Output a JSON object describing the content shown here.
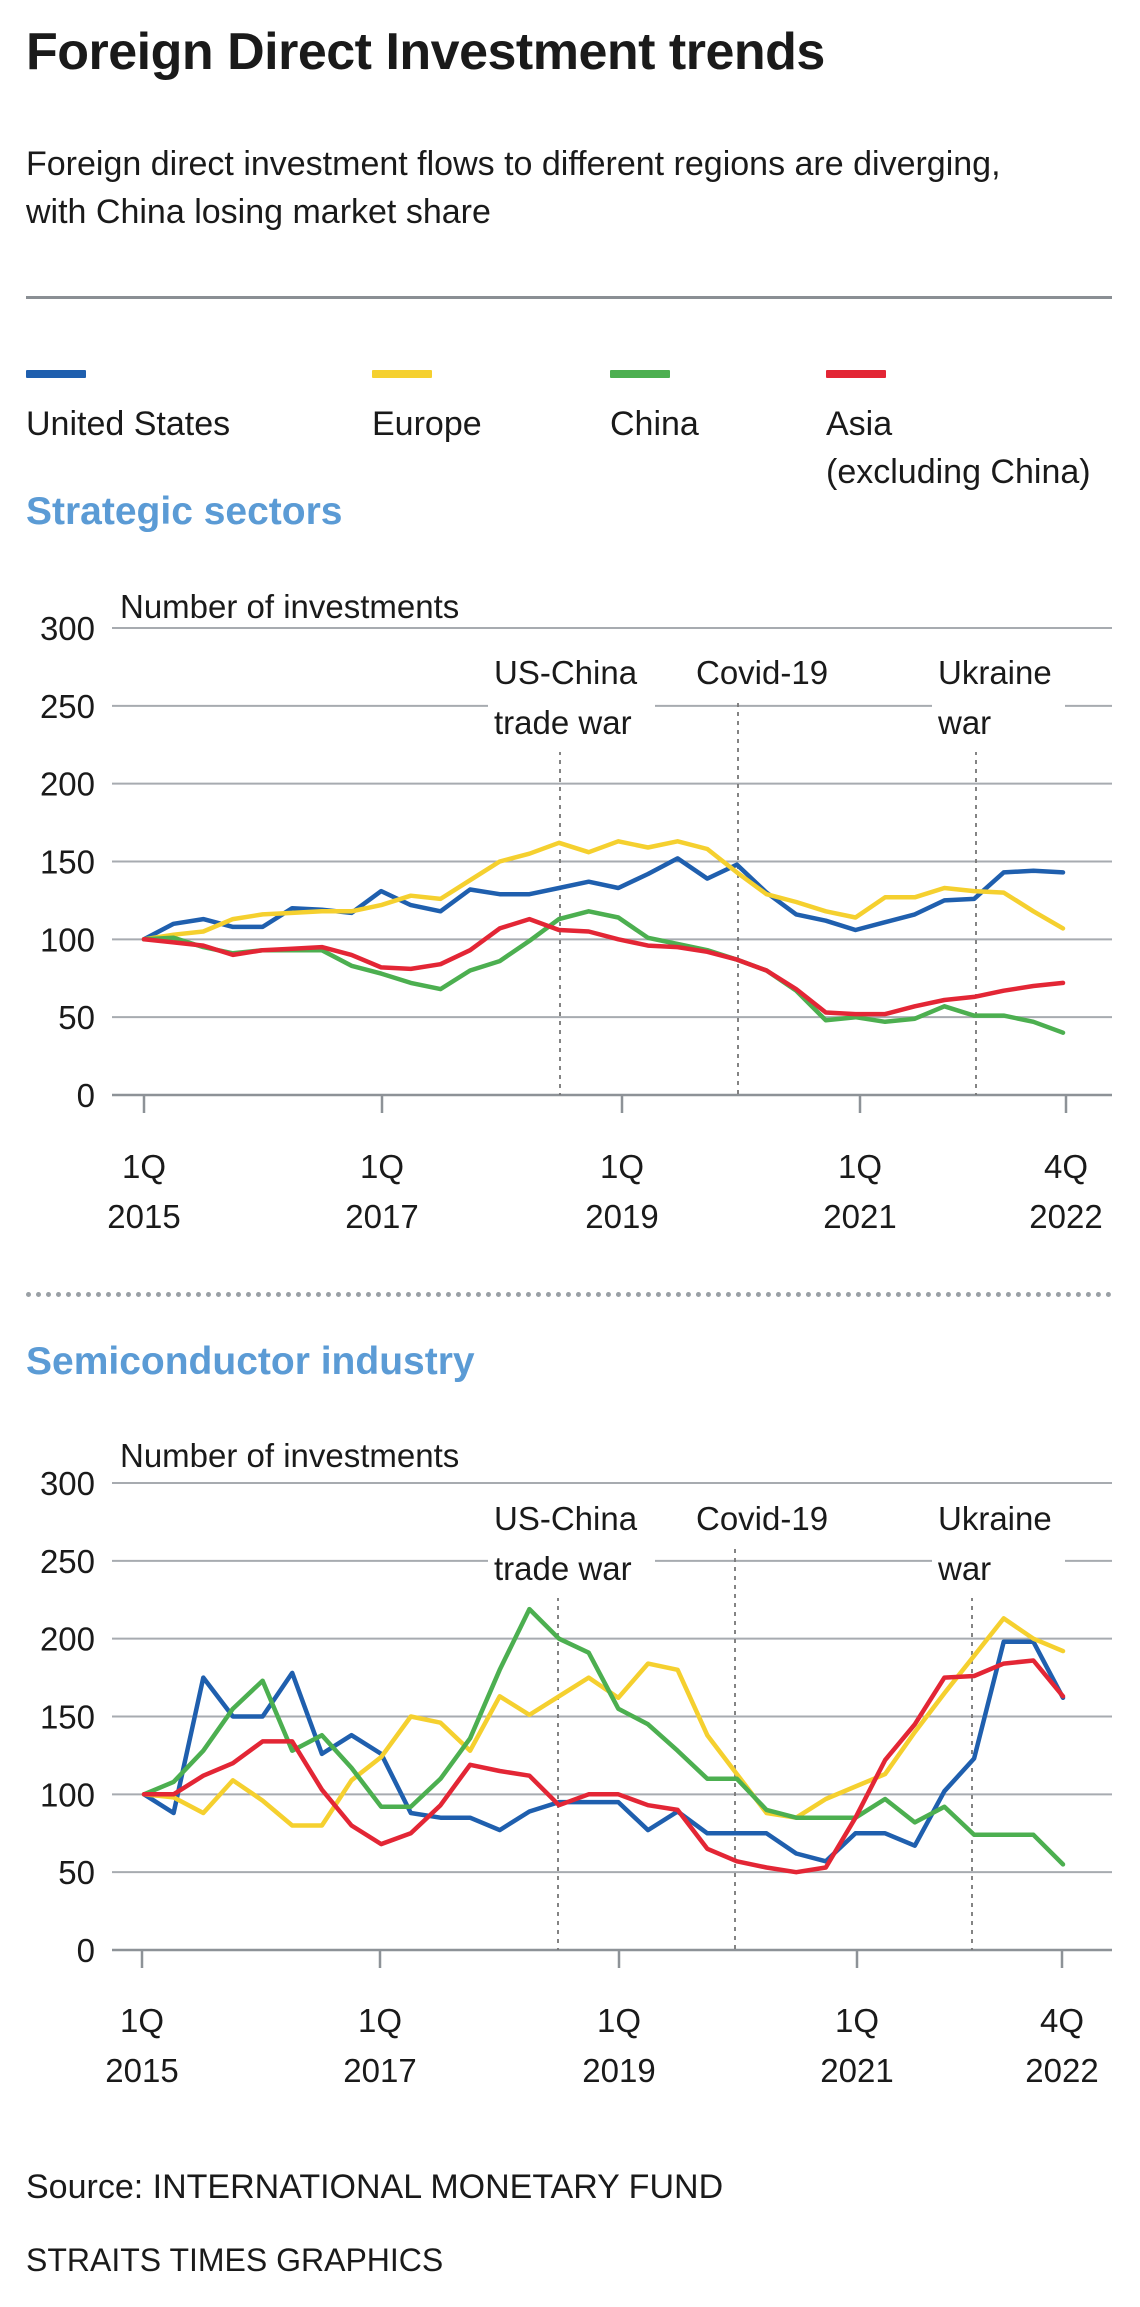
{
  "title": "Foreign Direct Investment trends",
  "subtitle": "Foreign direct investment flows to different regions are diverging, with China losing market share",
  "legend": [
    {
      "label": "United States",
      "color": "#1f5fae"
    },
    {
      "label": "Europe",
      "color": "#f5d02f"
    },
    {
      "label": "China",
      "color": "#4caf50"
    },
    {
      "label": "Asia\n(excluding China)",
      "color": "#e32635"
    }
  ],
  "source": "Source: INTERNATIONAL MONETARY FUND",
  "credit": "STRAITS TIMES GRAPHICS",
  "chart_data": [
    {
      "type": "line",
      "title": "Strategic sectors",
      "ylabel": "Number of investments",
      "ylim": [
        0,
        300
      ],
      "yticks": [
        0,
        50,
        100,
        150,
        200,
        250,
        300
      ],
      "grid": true,
      "x": [
        "1Q 2015",
        "2Q 2015",
        "3Q 2015",
        "4Q 2015",
        "1Q 2016",
        "2Q 2016",
        "3Q 2016",
        "4Q 2016",
        "1Q 2017",
        "2Q 2017",
        "3Q 2017",
        "4Q 2017",
        "1Q 2018",
        "2Q 2018",
        "3Q 2018",
        "4Q 2018",
        "1Q 2019",
        "2Q 2019",
        "3Q 2019",
        "4Q 2019",
        "1Q 2020",
        "2Q 2020",
        "3Q 2020",
        "4Q 2020",
        "1Q 2021",
        "2Q 2021",
        "3Q 2021",
        "4Q 2021",
        "1Q 2022",
        "2Q 2022",
        "3Q 2022",
        "4Q 2022"
      ],
      "xticks": [
        {
          "line1": "1Q",
          "line2": "2015"
        },
        {
          "line1": "1Q",
          "line2": "2017"
        },
        {
          "line1": "1Q",
          "line2": "2019"
        },
        {
          "line1": "1Q",
          "line2": "2021"
        },
        {
          "line1": "4Q",
          "line2": "2022"
        }
      ],
      "events": [
        {
          "lines": [
            "US-China",
            "trade war"
          ]
        },
        {
          "lines": [
            "Covid-19"
          ]
        },
        {
          "lines": [
            "Ukraine",
            "war"
          ]
        }
      ],
      "series": [
        {
          "name": "United States",
          "color": "#1f5fae",
          "values": [
            100,
            110,
            113,
            108,
            108,
            120,
            119,
            117,
            131,
            122,
            118,
            132,
            129,
            129,
            133,
            137,
            133,
            142,
            152,
            139,
            148,
            130,
            116,
            112,
            106,
            111,
            116,
            125,
            126,
            143,
            144,
            143
          ]
        },
        {
          "name": "Europe",
          "color": "#f5d02f",
          "values": [
            100,
            103,
            105,
            113,
            116,
            117,
            118,
            118,
            122,
            128,
            126,
            138,
            150,
            155,
            162,
            156,
            163,
            159,
            163,
            158,
            143,
            129,
            124,
            118,
            114,
            127,
            127,
            133,
            131,
            130,
            118,
            107
          ]
        },
        {
          "name": "China",
          "color": "#4caf50",
          "values": [
            100,
            101,
            95,
            91,
            93,
            93,
            93,
            83,
            78,
            72,
            68,
            80,
            86,
            99,
            113,
            118,
            114,
            101,
            97,
            93,
            87,
            80,
            67,
            48,
            50,
            47,
            49,
            57,
            51,
            51,
            47,
            40
          ]
        },
        {
          "name": "Asia (excluding China)",
          "color": "#e32635",
          "values": [
            100,
            98,
            96,
            90,
            93,
            94,
            95,
            90,
            82,
            81,
            84,
            93,
            107,
            113,
            106,
            105,
            100,
            96,
            95,
            92,
            87,
            80,
            68,
            53,
            52,
            52,
            57,
            61,
            63,
            67,
            70,
            72
          ]
        }
      ]
    },
    {
      "type": "line",
      "title": "Semiconductor industry",
      "ylabel": "Number of investments",
      "ylim": [
        0,
        300
      ],
      "yticks": [
        0,
        50,
        100,
        150,
        200,
        250,
        300
      ],
      "grid": true,
      "x": [
        "1Q 2015",
        "2Q 2015",
        "3Q 2015",
        "4Q 2015",
        "1Q 2016",
        "2Q 2016",
        "3Q 2016",
        "4Q 2016",
        "1Q 2017",
        "2Q 2017",
        "3Q 2017",
        "4Q 2017",
        "1Q 2018",
        "2Q 2018",
        "3Q 2018",
        "4Q 2018",
        "1Q 2019",
        "2Q 2019",
        "3Q 2019",
        "4Q 2019",
        "1Q 2020",
        "2Q 2020",
        "3Q 2020",
        "4Q 2020",
        "1Q 2021",
        "2Q 2021",
        "3Q 2021",
        "4Q 2021",
        "1Q 2022",
        "2Q 2022",
        "3Q 2022",
        "4Q 2022"
      ],
      "xticks": [
        {
          "line1": "1Q",
          "line2": "2015"
        },
        {
          "line1": "1Q",
          "line2": "2017"
        },
        {
          "line1": "1Q",
          "line2": "2019"
        },
        {
          "line1": "1Q",
          "line2": "2021"
        },
        {
          "line1": "4Q",
          "line2": "2022"
        }
      ],
      "events": [
        {
          "lines": [
            "US-China",
            "trade war"
          ]
        },
        {
          "lines": [
            "Covid-19"
          ]
        },
        {
          "lines": [
            "Ukraine",
            "war"
          ]
        }
      ],
      "series": [
        {
          "name": "United States",
          "color": "#1f5fae",
          "values": [
            100,
            88,
            175,
            150,
            150,
            178,
            126,
            138,
            126,
            88,
            85,
            85,
            77,
            89,
            95,
            95,
            95,
            77,
            89,
            75,
            75,
            75,
            62,
            57,
            75,
            75,
            67,
            102,
            123,
            198,
            198,
            162
          ]
        },
        {
          "name": "Europe",
          "color": "#f5d02f",
          "values": [
            100,
            98,
            88,
            109,
            96,
            80,
            80,
            109,
            124,
            150,
            146,
            128,
            163,
            151,
            163,
            175,
            162,
            184,
            180,
            138,
            113,
            88,
            85,
            97,
            105,
            113,
            140,
            165,
            189,
            213,
            200,
            192
          ]
        },
        {
          "name": "China",
          "color": "#4caf50",
          "values": [
            100,
            108,
            128,
            155,
            173,
            128,
            138,
            117,
            92,
            92,
            110,
            136,
            180,
            219,
            200,
            191,
            155,
            145,
            128,
            110,
            110,
            90,
            85,
            85,
            85,
            97,
            82,
            92,
            74,
            74,
            74,
            55
          ]
        },
        {
          "name": "Asia (excluding China)",
          "color": "#e32635",
          "values": [
            100,
            100,
            112,
            120,
            134,
            134,
            103,
            80,
            68,
            75,
            93,
            119,
            115,
            112,
            93,
            100,
            100,
            93,
            90,
            65,
            57,
            53,
            50,
            53,
            85,
            122,
            145,
            175,
            176,
            184,
            186,
            163
          ]
        }
      ]
    }
  ]
}
